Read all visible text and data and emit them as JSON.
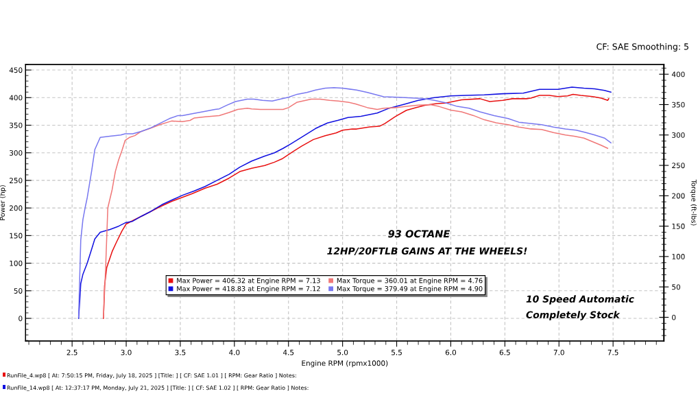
{
  "chart_data": {
    "type": "line",
    "xlabel": "Engine RPM (rpmx1000)",
    "ylabel": "Power (hp)",
    "y2label": "Torque (ft-lbs)",
    "xlim": [
      2.07,
      7.97
    ],
    "xticks": [
      2.5,
      {
        "value": 3,
        "label": "3.0"
      },
      3.5,
      {
        "value": 4,
        "label": "4.0"
      },
      4.5,
      {
        "value": 5,
        "label": "5.0"
      },
      5.5,
      {
        "value": 6,
        "label": "6.0"
      },
      6.5,
      {
        "value": 7,
        "label": "7.0"
      },
      7.5
    ],
    "ylim": [
      -41,
      460
    ],
    "yticks": [
      0,
      50,
      100,
      150,
      200,
      250,
      300,
      350,
      400,
      450
    ],
    "y2lim": [
      -39,
      416
    ],
    "y2ticks": [
      0,
      50,
      100,
      150,
      200,
      250,
      300,
      350,
      400
    ],
    "grid": true,
    "legend": "bottom",
    "line_style": "solid",
    "series": [
      {
        "name": "Max Power = 406.32 at Engine RPM = 7.13",
        "color": "#e81010",
        "x": [
          2.79,
          2.8,
          2.82,
          2.87,
          2.91,
          2.96,
          3.0,
          3.08,
          3.14,
          3.23,
          3.31,
          3.42,
          3.5,
          3.61,
          3.73,
          3.84,
          3.95,
          4.05,
          4.16,
          4.28,
          4.37,
          4.44,
          4.54,
          4.62,
          4.73,
          4.84,
          4.94,
          5.0,
          5.09,
          5.13,
          5.25,
          5.34,
          5.39,
          5.49,
          5.59,
          5.68,
          5.76,
          5.87,
          5.95,
          6.1,
          6.27,
          6.36,
          6.48,
          6.57,
          6.7,
          6.74,
          6.82,
          6.91,
          6.99,
          7.08,
          7.13,
          7.2,
          7.31,
          7.39,
          7.45,
          7.46
        ],
        "values": [
          0,
          59,
          92,
          121,
          138,
          158,
          171,
          179,
          185,
          194,
          202,
          212,
          218,
          226,
          236,
          243,
          254,
          266,
          272,
          277,
          283,
          289,
          302,
          312,
          324,
          331,
          336,
          341,
          343,
          343,
          347,
          348,
          353,
          366,
          377,
          382,
          386,
          389,
          390,
          396,
          398,
          393,
          395,
          398,
          398,
          399,
          404,
          404,
          402,
          403,
          406,
          404,
          402,
          399,
          395,
          398
        ]
      },
      {
        "name": "Max Power = 418.83 at Engine RPM = 7.12",
        "color": "#1010e0",
        "x": [
          2.56,
          2.57,
          2.58,
          2.6,
          2.64,
          2.68,
          2.71,
          2.76,
          2.85,
          2.93,
          2.99,
          3.06,
          3.14,
          3.23,
          3.33,
          3.44,
          3.52,
          3.63,
          3.73,
          3.84,
          3.95,
          4.05,
          4.16,
          4.28,
          4.37,
          4.45,
          4.52,
          4.62,
          4.75,
          4.86,
          4.96,
          5.05,
          5.17,
          5.32,
          5.42,
          5.57,
          5.7,
          5.85,
          6.0,
          6.14,
          6.31,
          6.48,
          6.67,
          6.82,
          6.99,
          7.12,
          7.23,
          7.33,
          7.42,
          7.48
        ],
        "values": [
          0,
          30,
          63,
          80,
          100,
          125,
          144,
          156,
          161,
          167,
          173,
          176,
          185,
          194,
          206,
          216,
          223,
          231,
          239,
          250,
          261,
          274,
          285,
          294,
          300,
          308,
          316,
          328,
          344,
          354,
          359,
          364,
          366,
          372,
          380,
          388,
          395,
          400,
          403,
          404,
          405,
          407,
          408,
          415,
          415,
          419,
          417,
          416,
          413,
          410
        ]
      },
      {
        "name": "Max Torque = 360.01 at Engine RPM = 4.76",
        "color": "#f07878",
        "axis": "y2",
        "x": [
          2.79,
          2.81,
          2.83,
          2.87,
          2.9,
          2.93,
          2.96,
          2.99,
          3.03,
          3.08,
          3.14,
          3.21,
          3.31,
          3.42,
          3.52,
          3.59,
          3.63,
          3.73,
          3.86,
          3.95,
          4.03,
          4.12,
          4.16,
          4.24,
          4.33,
          4.45,
          4.5,
          4.58,
          4.71,
          4.79,
          4.88,
          4.96,
          5.05,
          5.12,
          5.23,
          5.32,
          5.38,
          5.49,
          5.59,
          5.7,
          5.81,
          5.89,
          6.0,
          6.1,
          6.21,
          6.31,
          6.42,
          6.53,
          6.63,
          6.74,
          6.84,
          6.95,
          7.06,
          7.14,
          7.23,
          7.31,
          7.39,
          7.45
        ],
        "values": [
          0,
          82,
          180,
          210,
          240,
          259,
          274,
          291,
          296,
          299,
          306,
          310,
          317,
          323,
          322,
          324,
          328,
          330,
          332,
          337,
          342,
          344,
          343,
          342,
          342,
          342,
          345,
          354,
          359,
          359,
          357,
          356,
          354,
          351,
          345,
          342,
          344,
          345,
          347,
          349,
          350,
          347,
          341,
          338,
          332,
          325,
          320,
          317,
          313,
          310,
          309,
          304,
          300,
          298,
          295,
          289,
          283,
          278
        ]
      },
      {
        "name": "Max Torque = 379.49 at Engine RPM = 4.90",
        "color": "#7878f0",
        "axis": "y2",
        "x": [
          2.56,
          2.57,
          2.58,
          2.6,
          2.62,
          2.64,
          2.68,
          2.71,
          2.76,
          2.85,
          2.95,
          2.99,
          3.06,
          3.14,
          3.23,
          3.31,
          3.4,
          3.48,
          3.52,
          3.61,
          3.73,
          3.82,
          3.86,
          3.93,
          4.01,
          4.12,
          4.18,
          4.26,
          4.35,
          4.45,
          4.5,
          4.58,
          4.67,
          4.75,
          4.84,
          4.92,
          5.0,
          5.13,
          5.23,
          5.38,
          5.51,
          5.64,
          5.74,
          5.85,
          5.95,
          6.06,
          6.17,
          6.27,
          6.4,
          6.53,
          6.63,
          6.74,
          6.84,
          6.95,
          7.06,
          7.16,
          7.25,
          7.33,
          7.42,
          7.48
        ],
        "values": [
          0,
          63,
          127,
          161,
          180,
          197,
          240,
          276,
          296,
          298,
          300,
          302,
          302,
          306,
          312,
          319,
          327,
          332,
          332,
          335,
          339,
          342,
          343,
          349,
          355,
          359,
          359,
          357,
          356,
          360,
          362,
          367,
          370,
          374,
          377,
          378,
          377,
          374,
          370,
          363,
          362,
          361,
          360,
          357,
          353,
          347,
          344,
          338,
          332,
          327,
          321,
          319,
          317,
          313,
          310,
          308,
          304,
          300,
          295,
          287
        ]
      }
    ],
    "annotations": [
      "CF: SAE Smoothing: 5",
      "93 OCTANE",
      "12HP/20FTLB GAINS AT THE WHEELS!",
      "10 Speed Automatic",
      "Completely Stock",
      "RunFile_4.wp8 [ At: 7:50:15 PM, Friday, July 18, 2025 ] [Title: ] [ CF: SAE 1.01 ] [ RPM: Gear Ratio ] Notes:",
      "RunFile_14.wp8 [ At: 12:37:17 PM, Monday, July 21, 2025 ] [Title: ] [ CF: SAE 1.02 ] [ RPM: Gear Ratio ] Notes:"
    ]
  }
}
